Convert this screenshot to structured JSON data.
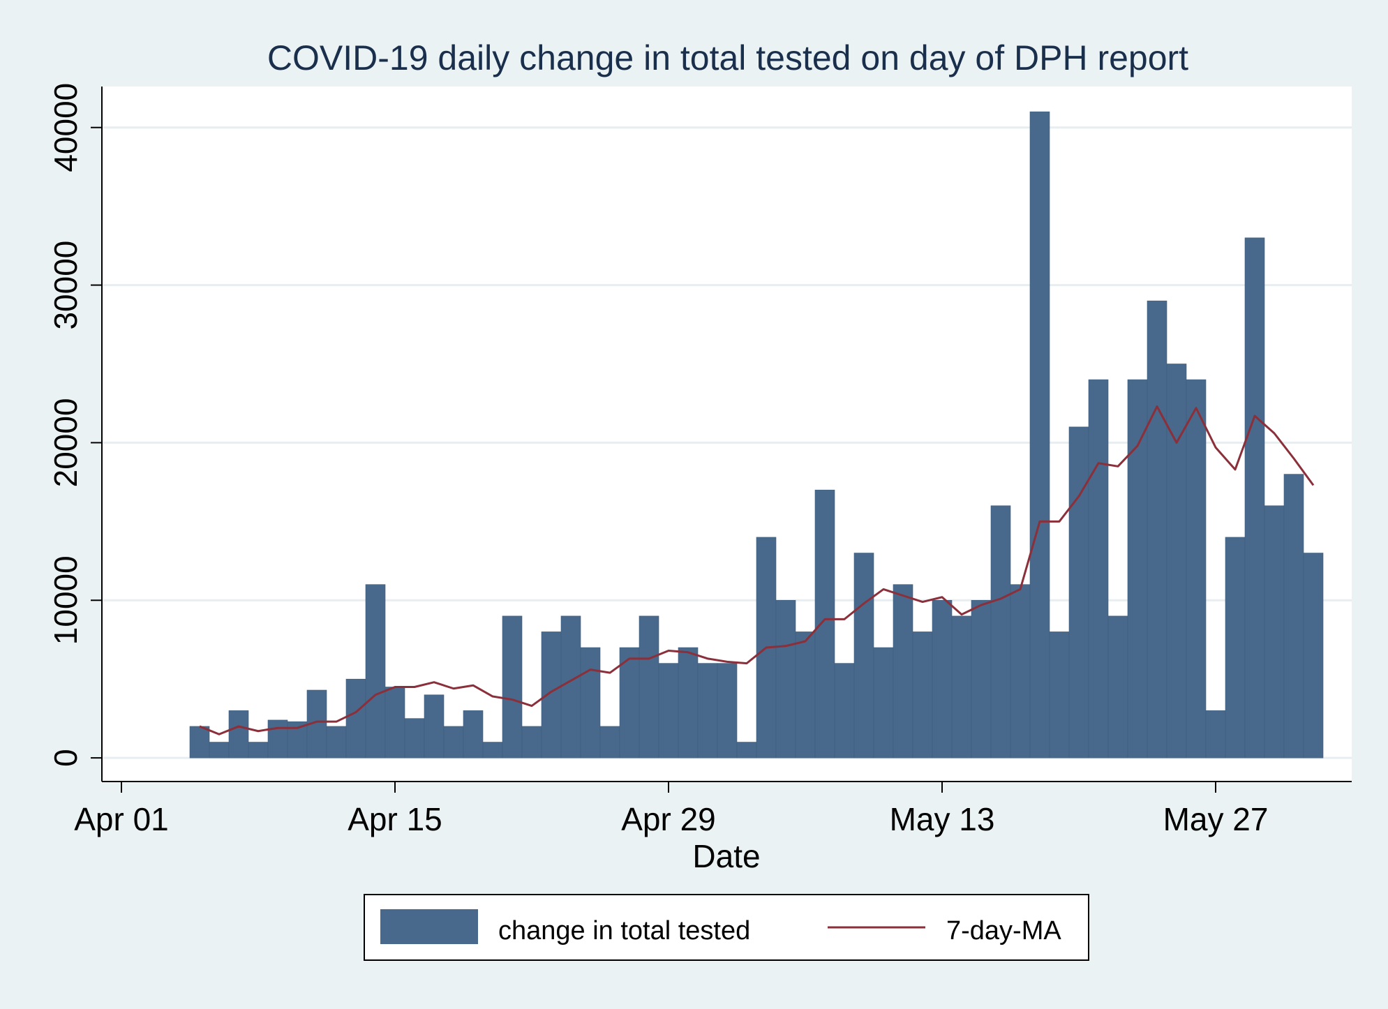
{
  "chart_data": {
    "type": "bar",
    "title": "COVID-19 daily change in total tested on day of DPH report",
    "xlabel": "Date",
    "ylabel": "",
    "ylim": [
      -1500,
      42600
    ],
    "x_range": [
      "2020-03-31",
      "2020-06-05"
    ],
    "x_ticks": [
      {
        "date": "2020-04-01",
        "label": "Apr 01"
      },
      {
        "date": "2020-04-15",
        "label": "Apr 15"
      },
      {
        "date": "2020-04-29",
        "label": "Apr 29"
      },
      {
        "date": "2020-05-13",
        "label": "May 13"
      },
      {
        "date": "2020-05-27",
        "label": "May 27"
      }
    ],
    "y_ticks": [
      0,
      10000,
      20000,
      30000,
      40000
    ],
    "grid": true,
    "legend_position": "bottom",
    "colors": {
      "bars": "#48698b",
      "line": "#8b2f3a",
      "plot_background": "#ffffff",
      "page_background": "#eaf2f3",
      "grid": "#e6eef1",
      "title": "#1a2f4c"
    },
    "x": [
      "2020-04-05",
      "2020-04-06",
      "2020-04-07",
      "2020-04-08",
      "2020-04-09",
      "2020-04-10",
      "2020-04-11",
      "2020-04-12",
      "2020-04-13",
      "2020-04-14",
      "2020-04-15",
      "2020-04-16",
      "2020-04-17",
      "2020-04-18",
      "2020-04-19",
      "2020-04-20",
      "2020-04-21",
      "2020-04-22",
      "2020-04-23",
      "2020-04-24",
      "2020-04-25",
      "2020-04-26",
      "2020-04-27",
      "2020-04-28",
      "2020-04-29",
      "2020-04-30",
      "2020-05-01",
      "2020-05-02",
      "2020-05-03",
      "2020-05-04",
      "2020-05-05",
      "2020-05-06",
      "2020-05-07",
      "2020-05-08",
      "2020-05-09",
      "2020-05-10",
      "2020-05-11",
      "2020-05-12",
      "2020-05-13",
      "2020-05-14",
      "2020-05-15",
      "2020-05-16",
      "2020-05-17",
      "2020-05-18",
      "2020-05-19",
      "2020-05-20",
      "2020-05-21",
      "2020-05-22",
      "2020-05-23",
      "2020-05-24",
      "2020-05-25",
      "2020-05-26",
      "2020-05-27",
      "2020-05-28",
      "2020-05-29",
      "2020-05-30",
      "2020-05-31",
      "2020-06-01"
    ],
    "series": [
      {
        "name": "change in total tested",
        "type": "bar",
        "values": [
          2000,
          1000,
          3000,
          1000,
          2400,
          2300,
          4300,
          2000,
          5000,
          11000,
          4500,
          2500,
          4000,
          2000,
          3000,
          1000,
          9000,
          2000,
          8000,
          9000,
          7000,
          2000,
          7000,
          9000,
          6000,
          7000,
          6000,
          6000,
          1000,
          14000,
          10000,
          8000,
          17000,
          6000,
          13000,
          7000,
          11000,
          8000,
          10000,
          9000,
          10000,
          16000,
          11000,
          41000,
          8000,
          21000,
          24000,
          9000,
          24000,
          29000,
          25000,
          24000,
          3000,
          14000,
          33000,
          16000,
          18000,
          13000
        ]
      },
      {
        "name": "7-day-MA",
        "type": "line",
        "values": [
          2000,
          1500,
          2000,
          1700,
          1900,
          1900,
          2300,
          2300,
          2900,
          4000,
          4500,
          4500,
          4800,
          4400,
          4600,
          3900,
          3700,
          3300,
          4200,
          4900,
          5600,
          5400,
          6300,
          6300,
          6800,
          6700,
          6300,
          6100,
          6000,
          7000,
          7100,
          7400,
          8800,
          8800,
          9800,
          10700,
          10300,
          9900,
          10200,
          9100,
          9700,
          10100,
          10700,
          15000,
          15000,
          16600,
          18700,
          18500,
          19800,
          22300,
          20000,
          22200,
          19700,
          18300,
          21700,
          20600,
          19000,
          17300
        ]
      }
    ]
  }
}
